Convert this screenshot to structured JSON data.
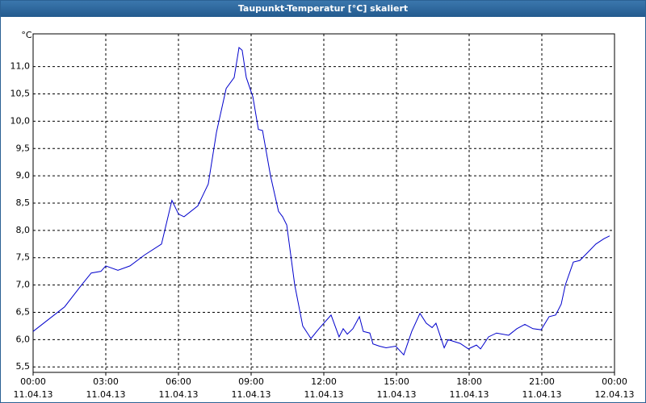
{
  "chart_data": {
    "type": "line",
    "title": "Taupunkt-Temperatur [°C] skaliert",
    "y_unit": "°C",
    "x": [
      0,
      1.3,
      2,
      2.4,
      2.8,
      3,
      3.5,
      4,
      4.6,
      5.3,
      5.73,
      6,
      6.23,
      6.8,
      7.23,
      7.57,
      7.97,
      8.3,
      8.5,
      8.63,
      8.8,
      9.07,
      9.3,
      9.47,
      9.8,
      10.13,
      10.3,
      10.47,
      10.8,
      11.13,
      11.47,
      11.8,
      12.3,
      12.63,
      12.8,
      12.97,
      13.2,
      13.47,
      13.63,
      13.9,
      14.03,
      14.3,
      14.57,
      14.97,
      15.3,
      15.63,
      15.97,
      16.23,
      16.47,
      16.63,
      16.97,
      17.13,
      17.63,
      17.97,
      18.3,
      18.47,
      18.8,
      19.13,
      19.63,
      19.97,
      20.3,
      20.63,
      20.97,
      21.3,
      21.57,
      21.8,
      21.97,
      22.3,
      22.57,
      22.9,
      23.23,
      23.57,
      23.8
    ],
    "series": [
      {
        "name": "Taupunkt-Temperatur",
        "color": "#0000cc",
        "values": [
          6.15,
          6.6,
          7.0,
          7.22,
          7.25,
          7.35,
          7.27,
          7.35,
          7.55,
          7.75,
          8.55,
          8.3,
          8.25,
          8.45,
          8.85,
          9.8,
          10.6,
          10.8,
          11.35,
          11.3,
          10.8,
          10.45,
          9.85,
          9.83,
          9.0,
          8.35,
          8.25,
          8.1,
          7.0,
          6.25,
          6.02,
          6.2,
          6.45,
          6.05,
          6.2,
          6.1,
          6.2,
          6.42,
          6.15,
          6.12,
          5.92,
          5.88,
          5.85,
          5.88,
          5.72,
          6.15,
          6.48,
          6.3,
          6.22,
          6.3,
          5.85,
          6.0,
          5.93,
          5.83,
          5.9,
          5.83,
          6.05,
          6.12,
          6.08,
          6.2,
          6.28,
          6.2,
          6.18,
          6.42,
          6.45,
          6.65,
          7.0,
          7.42,
          7.45,
          7.6,
          7.75,
          7.85,
          7.9
        ]
      }
    ],
    "xlim": [
      0,
      24
    ],
    "xticks": [
      {
        "value": 0,
        "label": "00:00",
        "date": "11.04.13"
      },
      {
        "value": 3,
        "label": "03:00",
        "date": "11.04.13"
      },
      {
        "value": 6,
        "label": "06:00",
        "date": "11.04.13"
      },
      {
        "value": 9,
        "label": "09:00",
        "date": "11.04.13"
      },
      {
        "value": 12,
        "label": "12:00",
        "date": "11.04.13"
      },
      {
        "value": 15,
        "label": "15:00",
        "date": "11.04.13"
      },
      {
        "value": 18,
        "label": "18:00",
        "date": "11.04.13"
      },
      {
        "value": 21,
        "label": "21:00",
        "date": "11.04.13"
      },
      {
        "value": 24,
        "label": "00:00",
        "date": "12.04.13"
      }
    ],
    "ylim": [
      5.4,
      11.6
    ],
    "yticks": [
      {
        "value": 5.5,
        "label": "5,5"
      },
      {
        "value": 6,
        "label": "6,0"
      },
      {
        "value": 6.5,
        "label": "6,5"
      },
      {
        "value": 7,
        "label": "7,0"
      },
      {
        "value": 7.5,
        "label": "7,5"
      },
      {
        "value": 8,
        "label": "8,0"
      },
      {
        "value": 8.5,
        "label": "8,5"
      },
      {
        "value": 9,
        "label": "9,0"
      },
      {
        "value": 9.5,
        "label": "9,5"
      },
      {
        "value": 10,
        "label": "10,0"
      },
      {
        "value": 10.5,
        "label": "10,5"
      },
      {
        "value": 11,
        "label": "11,0"
      }
    ],
    "grid": true
  }
}
